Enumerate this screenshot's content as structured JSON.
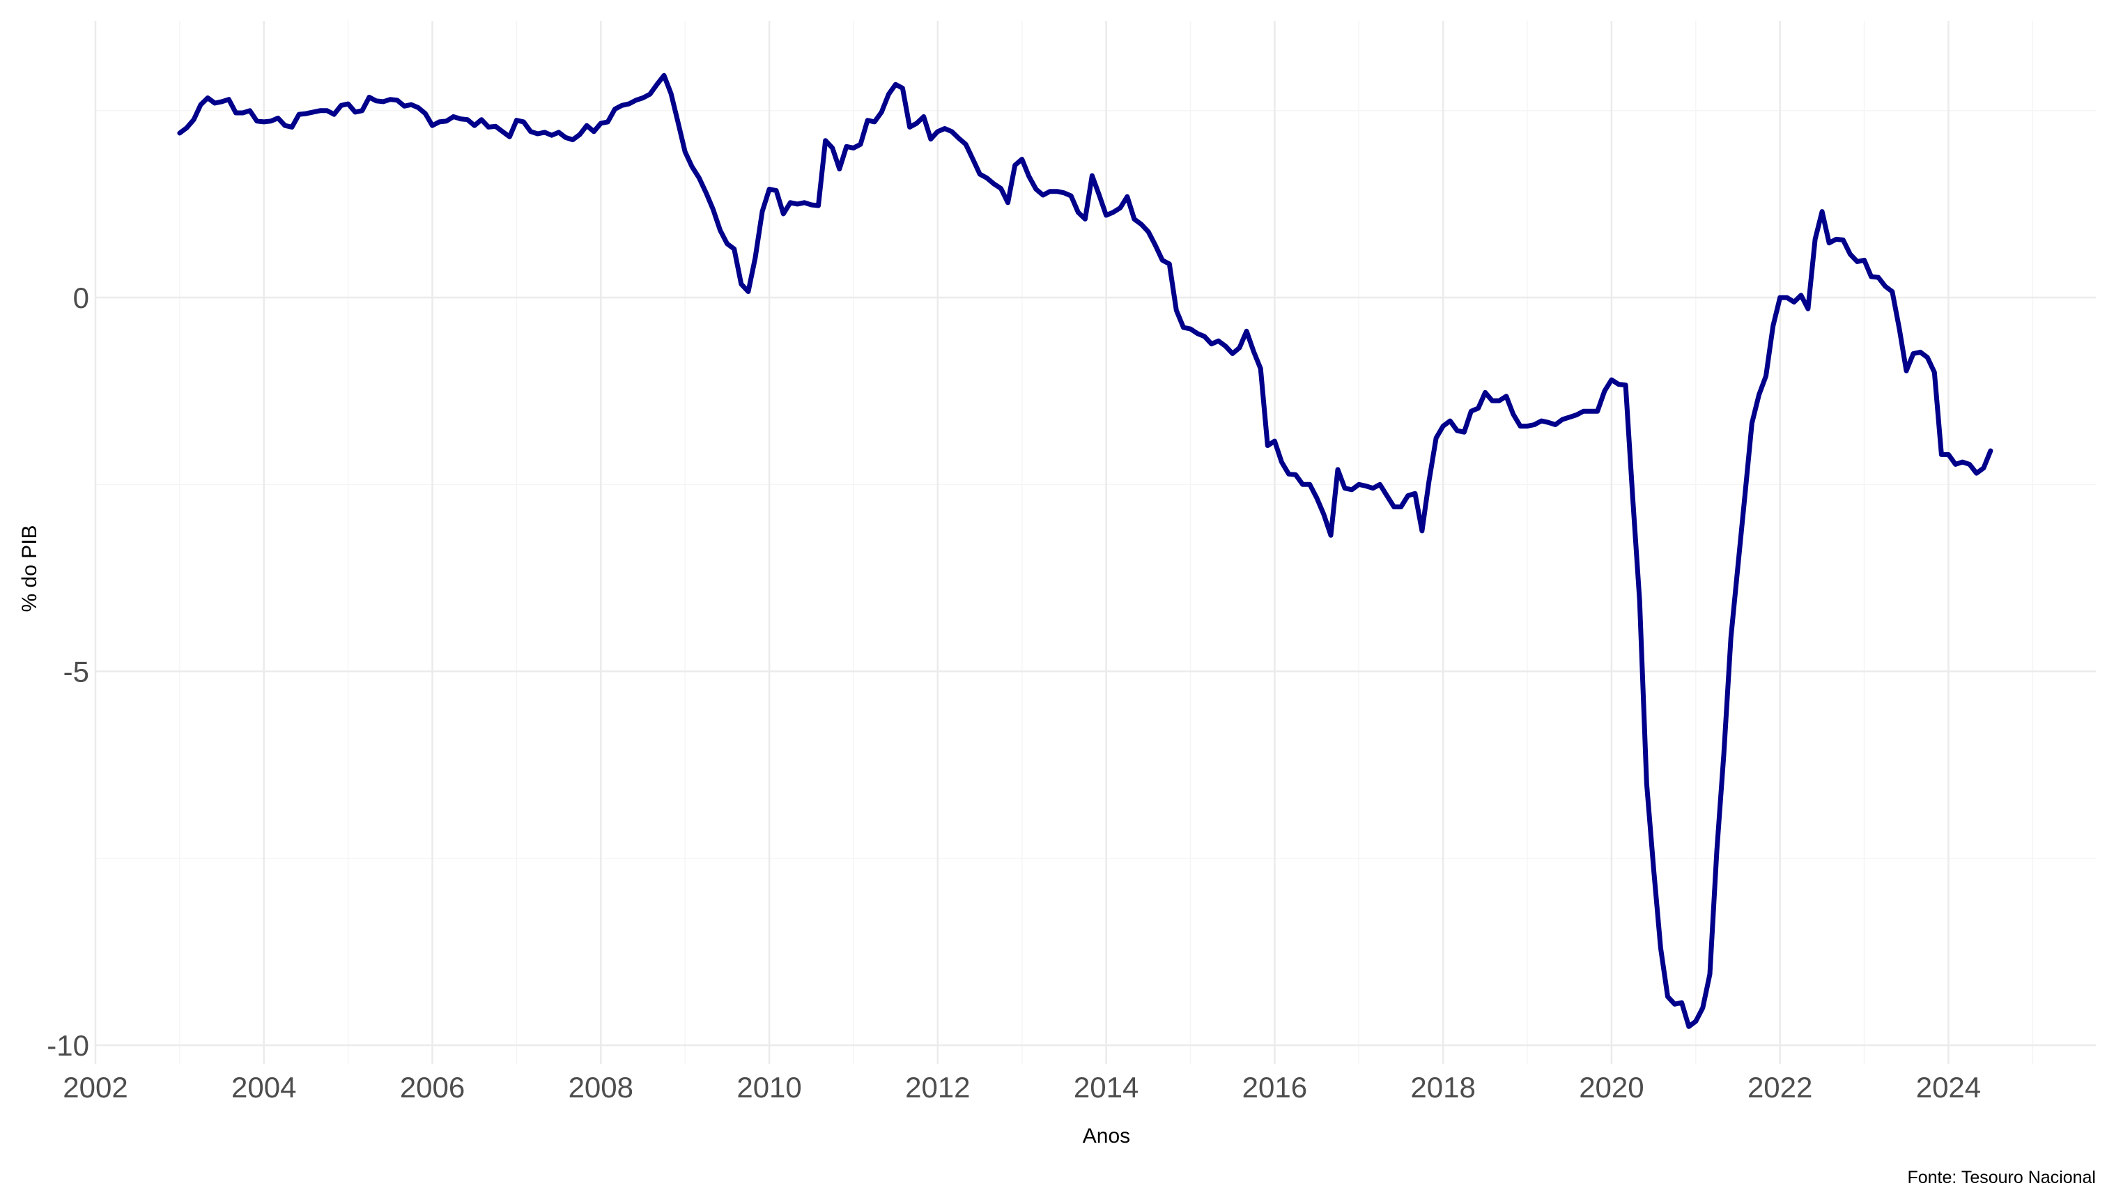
{
  "chart_data": {
    "type": "line",
    "title": "",
    "xlabel": "Anos",
    "ylabel": "% do PIB",
    "caption": "Fonte: Tesouro Nacional",
    "xlim": [
      2002.0,
      2025.75
    ],
    "ylim": [
      -10.25,
      3.7
    ],
    "x_ticks": [
      2002,
      2004,
      2006,
      2008,
      2010,
      2012,
      2014,
      2016,
      2018,
      2020,
      2022,
      2024
    ],
    "x_tick_labels": [
      "2002",
      "2004",
      "2006",
      "2008",
      "2010",
      "2012",
      "2014",
      "2016",
      "2018",
      "2020",
      "2022",
      "2024"
    ],
    "y_ticks": [
      0,
      -5,
      -10
    ],
    "y_tick_labels": [
      "0",
      "-5",
      "-10"
    ],
    "grid": true,
    "line_color": "#00008b",
    "series": [
      {
        "x": [
          2003.0,
          2003.083,
          2003.167,
          2003.25,
          2003.333,
          2003.417,
          2003.5,
          2003.583,
          2003.667,
          2003.75,
          2003.833,
          2003.917,
          2004.0,
          2004.083,
          2004.167,
          2004.25,
          2004.333,
          2004.417,
          2004.5,
          2004.583,
          2004.667,
          2004.75,
          2004.833,
          2004.917,
          2005.0,
          2005.083,
          2005.167,
          2005.25,
          2005.333,
          2005.417,
          2005.5,
          2005.583,
          2005.667,
          2005.75,
          2005.833,
          2005.917,
          2006.0,
          2006.083,
          2006.167,
          2006.25,
          2006.333,
          2006.417,
          2006.5,
          2006.583,
          2006.667,
          2006.75,
          2006.833,
          2006.917,
          2007.0,
          2007.083,
          2007.167,
          2007.25,
          2007.333,
          2007.417,
          2007.5,
          2007.583,
          2007.667,
          2007.75,
          2007.833,
          2007.917,
          2008.0,
          2008.083,
          2008.167,
          2008.25,
          2008.333,
          2008.417,
          2008.5,
          2008.583,
          2008.667,
          2008.75,
          2008.833,
          2008.917,
          2009.0,
          2009.083,
          2009.167,
          2009.25,
          2009.333,
          2009.417,
          2009.5,
          2009.583,
          2009.667,
          2009.75,
          2009.833,
          2009.917,
          2010.0,
          2010.083,
          2010.167,
          2010.25,
          2010.333,
          2010.417,
          2010.5,
          2010.583,
          2010.667,
          2010.75,
          2010.833,
          2010.917,
          2011.0,
          2011.083,
          2011.167,
          2011.25,
          2011.333,
          2011.417,
          2011.5,
          2011.583,
          2011.667,
          2011.75,
          2011.833,
          2011.917,
          2012.0,
          2012.083,
          2012.167,
          2012.25,
          2012.333,
          2012.417,
          2012.5,
          2012.583,
          2012.667,
          2012.75,
          2012.833,
          2012.917,
          2013.0,
          2013.083,
          2013.167,
          2013.25,
          2013.333,
          2013.417,
          2013.5,
          2013.583,
          2013.667,
          2013.75,
          2013.833,
          2013.917,
          2014.0,
          2014.083,
          2014.167,
          2014.25,
          2014.333,
          2014.417,
          2014.5,
          2014.583,
          2014.667,
          2014.75,
          2014.833,
          2014.917,
          2015.0,
          2015.083,
          2015.167,
          2015.25,
          2015.333,
          2015.417,
          2015.5,
          2015.583,
          2015.667,
          2015.75,
          2015.833,
          2015.917,
          2016.0,
          2016.083,
          2016.167,
          2016.25,
          2016.333,
          2016.417,
          2016.5,
          2016.583,
          2016.667,
          2016.75,
          2016.833,
          2016.917,
          2017.0,
          2017.083,
          2017.167,
          2017.25,
          2017.333,
          2017.417,
          2017.5,
          2017.583,
          2017.667,
          2017.75,
          2017.833,
          2017.917,
          2018.0,
          2018.083,
          2018.167,
          2018.25,
          2018.333,
          2018.417,
          2018.5,
          2018.583,
          2018.667,
          2018.75,
          2018.833,
          2018.917,
          2019.0,
          2019.083,
          2019.167,
          2019.25,
          2019.333,
          2019.417,
          2019.5,
          2019.583,
          2019.667,
          2019.75,
          2019.833,
          2019.917,
          2020.0,
          2020.083,
          2020.167,
          2020.25,
          2020.333,
          2020.417,
          2020.5,
          2020.583,
          2020.667,
          2020.75,
          2020.833,
          2020.917,
          2021.0,
          2021.083,
          2021.167,
          2021.25,
          2021.333,
          2021.417,
          2021.5,
          2021.583,
          2021.667,
          2021.75,
          2021.833,
          2021.917,
          2022.0,
          2022.083,
          2022.167,
          2022.25,
          2022.333,
          2022.417,
          2022.5,
          2022.583,
          2022.667,
          2022.75,
          2022.833,
          2022.917,
          2023.0,
          2023.083,
          2023.167,
          2023.25,
          2023.333,
          2023.417,
          2023.5,
          2023.583,
          2023.667,
          2023.75,
          2023.833,
          2023.917,
          2024.0,
          2024.083,
          2024.167,
          2024.25,
          2024.333,
          2024.417,
          2024.5
        ],
        "values": [
          2.2,
          2.27,
          2.38,
          2.58,
          2.67,
          2.6,
          2.62,
          2.65,
          2.47,
          2.47,
          2.5,
          2.36,
          2.35,
          2.36,
          2.4,
          2.3,
          2.28,
          2.45,
          2.46,
          2.48,
          2.5,
          2.5,
          2.45,
          2.57,
          2.59,
          2.48,
          2.5,
          2.68,
          2.63,
          2.62,
          2.65,
          2.64,
          2.56,
          2.58,
          2.54,
          2.46,
          2.3,
          2.35,
          2.36,
          2.42,
          2.39,
          2.38,
          2.3,
          2.38,
          2.28,
          2.29,
          2.22,
          2.15,
          2.37,
          2.35,
          2.22,
          2.19,
          2.21,
          2.17,
          2.21,
          2.14,
          2.11,
          2.18,
          2.3,
          2.22,
          2.33,
          2.35,
          2.52,
          2.57,
          2.59,
          2.64,
          2.67,
          2.72,
          2.85,
          2.97,
          2.73,
          2.34,
          1.95,
          1.75,
          1.6,
          1.4,
          1.18,
          0.9,
          0.72,
          0.65,
          0.18,
          0.08,
          0.53,
          1.15,
          1.45,
          1.43,
          1.12,
          1.27,
          1.25,
          1.27,
          1.24,
          1.23,
          2.1,
          2.0,
          1.72,
          2.02,
          2.0,
          2.05,
          2.37,
          2.35,
          2.48,
          2.72,
          2.85,
          2.8,
          2.28,
          2.33,
          2.42,
          2.12,
          2.22,
          2.26,
          2.22,
          2.13,
          2.05,
          1.85,
          1.65,
          1.6,
          1.52,
          1.46,
          1.27,
          1.77,
          1.85,
          1.62,
          1.45,
          1.37,
          1.42,
          1.42,
          1.4,
          1.36,
          1.14,
          1.05,
          1.63,
          1.37,
          1.1,
          1.14,
          1.2,
          1.35,
          1.05,
          0.98,
          0.88,
          0.7,
          0.5,
          0.45,
          -0.17,
          -0.4,
          -0.42,
          -0.48,
          -0.52,
          -0.62,
          -0.58,
          -0.65,
          -0.75,
          -0.67,
          -0.45,
          -0.72,
          -0.95,
          -1.98,
          -1.92,
          -2.2,
          -2.36,
          -2.37,
          -2.5,
          -2.5,
          -2.68,
          -2.9,
          -3.18,
          -2.3,
          -2.55,
          -2.57,
          -2.5,
          -2.52,
          -2.55,
          -2.5,
          -2.65,
          -2.8,
          -2.8,
          -2.65,
          -2.62,
          -3.12,
          -2.45,
          -1.88,
          -1.72,
          -1.65,
          -1.78,
          -1.8,
          -1.52,
          -1.48,
          -1.27,
          -1.38,
          -1.38,
          -1.32,
          -1.56,
          -1.72,
          -1.72,
          -1.7,
          -1.65,
          -1.67,
          -1.7,
          -1.63,
          -1.6,
          -1.57,
          -1.52,
          -1.52,
          -1.52,
          -1.25,
          -1.1,
          -1.16,
          -1.17,
          -2.65,
          -4.05,
          -6.5,
          -7.65,
          -8.7,
          -9.35,
          -9.45,
          -9.43,
          -9.75,
          -9.68,
          -9.5,
          -9.05,
          -7.4,
          -6.1,
          -4.55,
          -3.6,
          -2.65,
          -1.68,
          -1.3,
          -1.05,
          -0.38,
          0.0,
          0.0,
          -0.06,
          0.03,
          -0.15,
          0.78,
          1.15,
          0.73,
          0.78,
          0.77,
          0.58,
          0.48,
          0.5,
          0.28,
          0.27,
          0.15,
          0.08,
          -0.42,
          -0.98,
          -0.75,
          -0.73,
          -0.8,
          -1.0,
          -2.1,
          -2.1,
          -2.23,
          -2.2,
          -2.23,
          -2.35,
          -2.28,
          -2.05
        ]
      }
    ]
  }
}
